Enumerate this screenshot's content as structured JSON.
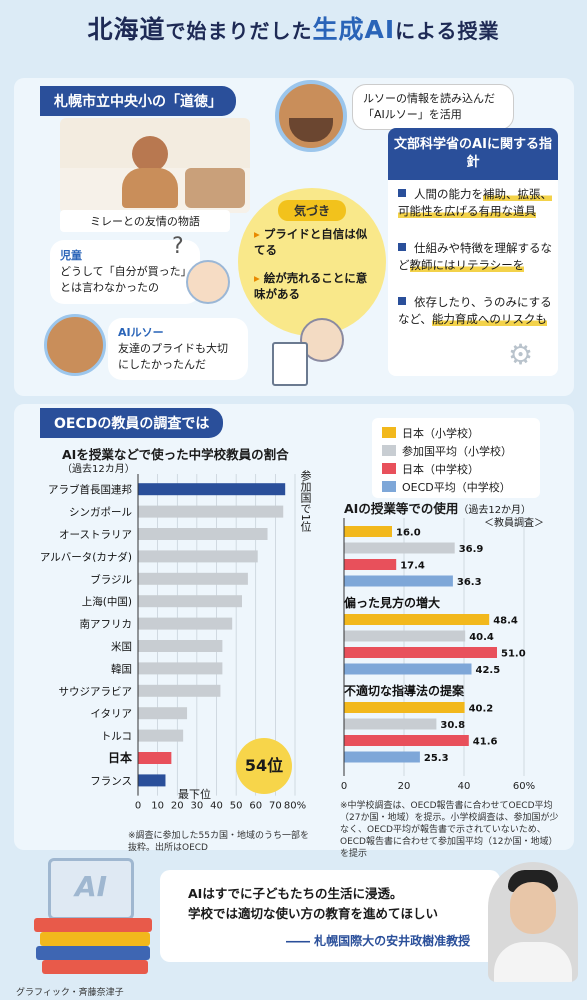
{
  "title": {
    "part1": "北海道",
    "part2": "で始まりだした",
    "part3": "生成AI",
    "part4": "による授業"
  },
  "section1": {
    "bar": "札幌市立中央小の「道徳」",
    "story_label": "ミレーとの友情の物語",
    "ai_bubble": "ルソーの情報を読み込んだ「AIルソー」を活用",
    "child_label": "児童",
    "child_text": "どうして「自分が買った」とは言わなかったの",
    "ai_label": "AIルソー",
    "ai_text": "友達のプライドも大切にしたかったんだ",
    "kizuki": {
      "head": "気づき",
      "items": [
        "プライドと自信は似てる",
        "絵が売れることに意味がある"
      ]
    },
    "question_mark": "?"
  },
  "guideline": {
    "head": "文部科学省のAIに関する指針",
    "items": [
      {
        "pre": "人間の能力を",
        "hl": "補助、拡張、可能性を広げる有用な道具",
        "post": ""
      },
      {
        "pre": "仕組みや特徴を理解するなど",
        "hl": "教師にはリテラシーを",
        "post": ""
      },
      {
        "pre": "依存したり、うのみにするなど、",
        "hl": "能力育成へのリスクも",
        "post": ""
      }
    ]
  },
  "section2": {
    "bar": "OECDの教員の調査では"
  },
  "left_chart_text": {
    "top_note": "参加国で1位",
    "bottom_note": "最下位",
    "rank_badge": "54位",
    "footnote": "※調査に参加した55カ国・地域のうち一部を抜粋。出所はOECD"
  },
  "right_chart_text": {
    "survey_note": "＜教員調査＞",
    "footnote": "※中学校調査は、OECD報告書に合わせてOECD平均（27か国・地域）を提示。小学校調査は、参加国が少なく、OECD平均が報告書で示されていないため、OECD報告書に合わせて参加国平均（12か国・地域）を提示"
  },
  "colors": {
    "japan": "#e8505b",
    "top": "#2a4f9a",
    "bottom": "#2a4f9a",
    "other": "#c8cdd2",
    "jp_elem": "#f2b81c",
    "avg_elem": "#c8cdd2",
    "jp_mid": "#e8505b",
    "oecd_mid": "#7ea7d8"
  },
  "chart_data": [
    {
      "type": "bar",
      "orientation": "horizontal",
      "title": "AIを授業などで使った中学校教員の割合",
      "subtitle": "（過去12カ月）",
      "categories": [
        "アラブ首長国連邦",
        "シンガポール",
        "オーストラリア",
        "アルバータ(カナダ)",
        "ブラジル",
        "上海(中国)",
        "南アフリカ",
        "米国",
        "韓国",
        "サウジアラビア",
        "イタリア",
        "トルコ",
        "日本",
        "フランス"
      ],
      "values": [
        75,
        74,
        66,
        61,
        56,
        53,
        48,
        43,
        43,
        42,
        25,
        23,
        17,
        14
      ],
      "xticks": [
        "0",
        "10",
        "20",
        "30",
        "40",
        "50",
        "60",
        "70",
        "80%"
      ],
      "xlim": [
        0,
        80
      ]
    },
    {
      "type": "bar",
      "orientation": "horizontal",
      "title": "AIの授業等での使用",
      "subtitle": "（過去12か月）",
      "legend": [
        "日本（小学校）",
        "参加国平均（小学校）",
        "日本（中学校）",
        "OECD平均（中学校）"
      ],
      "legend_position": "top",
      "groups": [
        {
          "name": "AIの授業等での使用",
          "values": [
            16.0,
            36.9,
            17.4,
            36.3
          ],
          "labels": [
            "16.0",
            "36.9",
            "17.4",
            "36.3"
          ]
        },
        {
          "name": "偏った見方の増大",
          "values": [
            48.4,
            40.4,
            51.0,
            42.5
          ],
          "labels": [
            "48.4",
            "40.4",
            "51.0",
            "42.5"
          ]
        },
        {
          "name": "不適切な指導法の提案",
          "values": [
            40.2,
            30.8,
            41.6,
            25.3
          ],
          "labels": [
            "40.2",
            "30.8",
            "41.6",
            "25.3"
          ]
        }
      ],
      "xticks": [
        "0",
        "20",
        "40",
        "60%"
      ],
      "xlim": [
        0,
        60
      ]
    }
  ],
  "bottom": {
    "quote1": "AIはすでに子どもたちの生活に浸透。",
    "quote2": "学校では適切な使い方の教育を進めてほしい",
    "attribution": "―― 札幌国際大の安井政樹准教授",
    "ai_sign": "AI",
    "credit": "グラフィック・斉藤奈津子"
  }
}
